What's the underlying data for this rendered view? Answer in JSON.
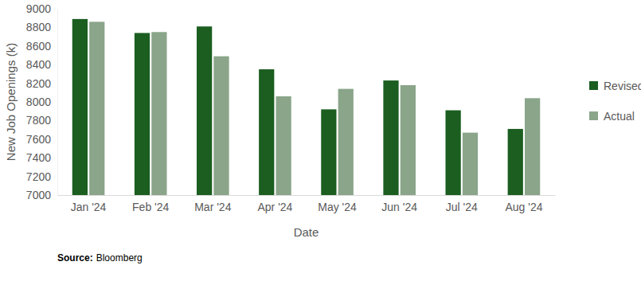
{
  "chart_data": {
    "type": "bar",
    "x_label": "Date",
    "y_label": "New Job Openings (k)",
    "source_label": "Source:",
    "source": "Bloomberg",
    "categories": [
      "Jan '24",
      "Feb '24",
      "Mar '24",
      "Apr '24",
      "May '24",
      "Jun '24",
      "Jul '24",
      "Aug '24"
    ],
    "series": [
      {
        "name": "Revised",
        "color": "#1b5e20",
        "values": [
          8890,
          8740,
          8810,
          8350,
          7920,
          8230,
          7910,
          7710
        ]
      },
      {
        "name": "Actual",
        "color": "#8aa58a",
        "values": [
          8860,
          8750,
          8490,
          8060,
          8140,
          8180,
          7670,
          8040
        ]
      }
    ],
    "ylim": [
      7000,
      9000
    ],
    "yticks": [
      7000,
      7200,
      7400,
      7600,
      7800,
      8000,
      8200,
      8400,
      8600,
      8800,
      9000
    ],
    "grid": false,
    "legend": "right"
  }
}
